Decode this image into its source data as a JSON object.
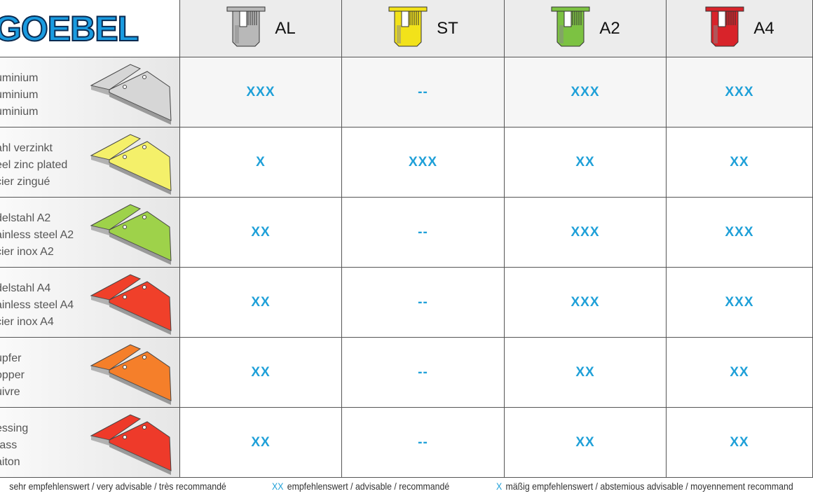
{
  "logo": "GOEBEL",
  "columns": [
    {
      "label": "AL",
      "color": "#b8b8b8"
    },
    {
      "label": "ST",
      "color": "#f2e21a"
    },
    {
      "label": "A2",
      "color": "#7cc242"
    },
    {
      "label": "A4",
      "color": "#d8232a"
    }
  ],
  "rows": [
    {
      "lines": [
        "uminium",
        "uminium",
        "uminium"
      ],
      "plate_color": "#d6d6d6",
      "values": [
        "XXX",
        "--",
        "XXX",
        "XXX"
      ]
    },
    {
      "lines": [
        "ahl verzinkt",
        "eel zinc plated",
        "cier zingué"
      ],
      "plate_color": "#f4f06a",
      "values": [
        "X",
        "XXX",
        "XX",
        "XX"
      ]
    },
    {
      "lines": [
        "delstahl A2",
        "ainless steel A2",
        "cier inox A2"
      ],
      "plate_color": "#9ed24a",
      "values": [
        "XX",
        "--",
        "XXX",
        "XXX"
      ]
    },
    {
      "lines": [
        "delstahl A4",
        "ainless steel A4",
        "cier inox A4"
      ],
      "plate_color": "#f0402a",
      "values": [
        "XX",
        "--",
        "XXX",
        "XXX"
      ]
    },
    {
      "lines": [
        "upfer",
        "opper",
        "uivre"
      ],
      "plate_color": "#f57f2a",
      "values": [
        "XX",
        "--",
        "XX",
        "XX"
      ]
    },
    {
      "lines": [
        "essing",
        "rass",
        "aiton"
      ],
      "plate_color": "#ee3a2a",
      "values": [
        "XX",
        "--",
        "XX",
        "XX"
      ]
    }
  ],
  "legend": [
    {
      "key": "",
      "text": "sehr empfehlenswert / very advisable / très recommandé"
    },
    {
      "key": "XX",
      "text": "empfehlenswert / advisable /  recommandé"
    },
    {
      "key": "X",
      "text": "mäßig empfehlenswert / abstemious advisable / moyennement recommand"
    }
  ]
}
